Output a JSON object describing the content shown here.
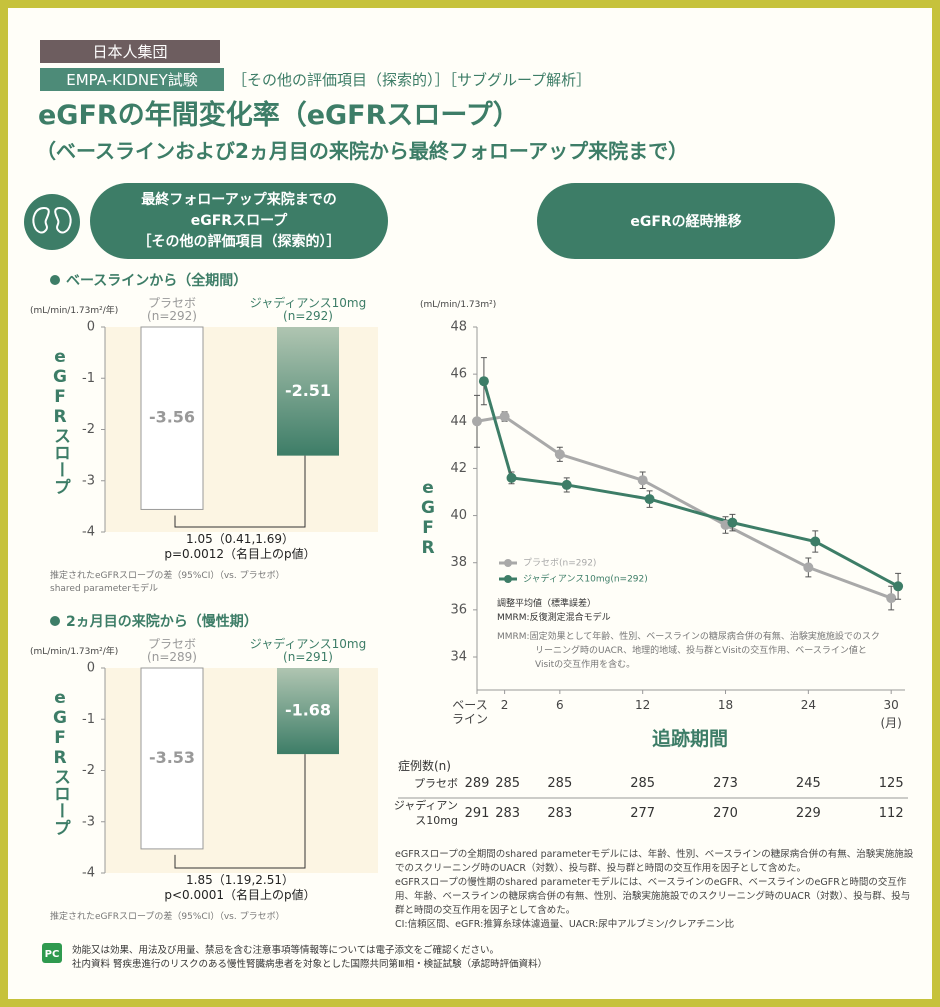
{
  "header": {
    "tag": "日本人集団",
    "study": "EMPA-KIDNEY試験",
    "category": "［その他の評価項目（探索的）］［サブグループ解析］",
    "title": "eGFRの年間変化率（eGFRスロープ）",
    "subtitle": "（ベースラインおよび2ヵ月目の来院から最終フォローアップ来院まで）"
  },
  "panels": {
    "left": [
      "最終フォローアップ来院までの",
      "eGFRスロープ",
      "［その他の評価項目（探索的）］"
    ],
    "right": "eGFRの経時推移"
  },
  "chart_data": [
    {
      "type": "bar",
      "section_label": "ベースラインから（全期間）",
      "y_unit": "(mL/min/1.73m²/年)",
      "y_label": "eGFRスロープ",
      "categories": [
        "プラセボ",
        "ジャディアンス10mg"
      ],
      "n_labels": [
        "(n=292)",
        "(n=292)"
      ],
      "values": [
        -3.56,
        -2.51
      ],
      "colors": [
        "#ffffff",
        "#3d7d67"
      ],
      "ylim": [
        -4,
        0
      ],
      "yticks": [
        0,
        -1,
        -2,
        -3,
        -4
      ],
      "difference": "1.05（0.41,1.69）",
      "p_value": "p=0.0012（名目上のp値）",
      "notes": [
        "推定されたeGFRスロープの差（95%CI）（vs. プラセボ）",
        "shared parameterモデル"
      ]
    },
    {
      "type": "bar",
      "section_label": "2ヵ月目の来院から（慢性期）",
      "y_unit": "(mL/min/1.73m²/年)",
      "y_label": "eGFRスロープ",
      "categories": [
        "プラセボ",
        "ジャディアンス10mg"
      ],
      "n_labels": [
        "(n=289)",
        "(n=291)"
      ],
      "values": [
        -3.53,
        -1.68
      ],
      "colors": [
        "#ffffff",
        "#3d7d67"
      ],
      "ylim": [
        -4,
        0
      ],
      "yticks": [
        0,
        -1,
        -2,
        -3,
        -4
      ],
      "difference": "1.85（1.19,2.51）",
      "p_value": "p<0.0001（名目上のp値）",
      "notes": [
        "推定されたeGFRスロープの差（95%CI）（vs. プラセボ）"
      ]
    },
    {
      "type": "line",
      "y_unit": "(mL/min/1.73m²)",
      "y_label": "eGFR",
      "x_label": "追跡期間",
      "x_unit": "(月)",
      "xlim": [
        0,
        31
      ],
      "ylim": [
        32.6,
        48
      ],
      "xticks": [
        {
          "value": 0,
          "label": "ベースライン"
        },
        2,
        6,
        12,
        18,
        24,
        30
      ],
      "yticks": [
        34,
        36,
        38,
        40,
        42,
        44,
        46,
        48
      ],
      "grid": false,
      "legend": "lower-left",
      "series": [
        {
          "name": "プラセボ(n=292)",
          "color": "#a9a9a9",
          "x": [
            0,
            2,
            6,
            12,
            18,
            24,
            30
          ],
          "values": [
            44.0,
            44.2,
            42.6,
            41.5,
            39.6,
            37.8,
            36.5
          ],
          "errors": [
            1.1,
            0.2,
            0.3,
            0.35,
            0.35,
            0.4,
            0.5
          ]
        },
        {
          "name": "ジャディアンス10mg(n=292)",
          "color": "#3d7d67",
          "x": [
            0.5,
            2.5,
            6.5,
            12.5,
            18.5,
            24.5,
            30.5
          ],
          "values": [
            45.7,
            41.6,
            41.3,
            40.7,
            39.7,
            38.9,
            37.0
          ],
          "errors": [
            1.0,
            0.25,
            0.3,
            0.35,
            0.35,
            0.45,
            0.55
          ]
        }
      ],
      "annotations": [
        "調整平均値（標準誤差）",
        "MMRM:反復測定混合モデル",
        "MMRM:固定効果として年齢、性別、ベースラインの糖尿病合併の有無、治験実施施設でのスクリーニング時のUACR、地理的地域、投与群とVisitの交互作用、ベースライン値とVisitの交互作用を含む。"
      ]
    }
  ],
  "table": {
    "title": "症例数(n)",
    "rows": [
      {
        "label": "プラセボ",
        "values": [
          289,
          285,
          285,
          285,
          273,
          245,
          125
        ]
      },
      {
        "label": "ジャディアンス10mg",
        "values": [
          291,
          283,
          283,
          277,
          270,
          229,
          112
        ]
      }
    ]
  },
  "footnotes": [
    "eGFRスロープの全期間のshared parameterモデルには、年齢、性別、ベースラインの糖尿病合併の有無、治験実施施設でのスクリーニング時のUACR（対数）、投与群、投与群と時間の交互作用を因子として含めた。",
    "eGFRスロープの慢性期のshared parameterモデルには、ベースラインのeGFR、ベースラインのeGFRと時間の交互作用、年齢、ベースラインの糖尿病合併の有無、性別、治験実施施設でのスクリーニング時のUACR（対数）、投与群、投与群と時間の交互作用を因子として含めた。",
    "CI:信頼区間、eGFR:推算糸球体濾過量、UACR:尿中アルブミン/クレアチニン比"
  ],
  "footer": [
    "効能又は効果、用法及び用量、禁忌を含む注意事項等情報等については電子添文をご確認ください。",
    "社内資料 腎疾患進行のリスクのある慢性腎臓病患者を対象とした国際共同第Ⅲ相・検証試験（承認時評価資料）"
  ]
}
